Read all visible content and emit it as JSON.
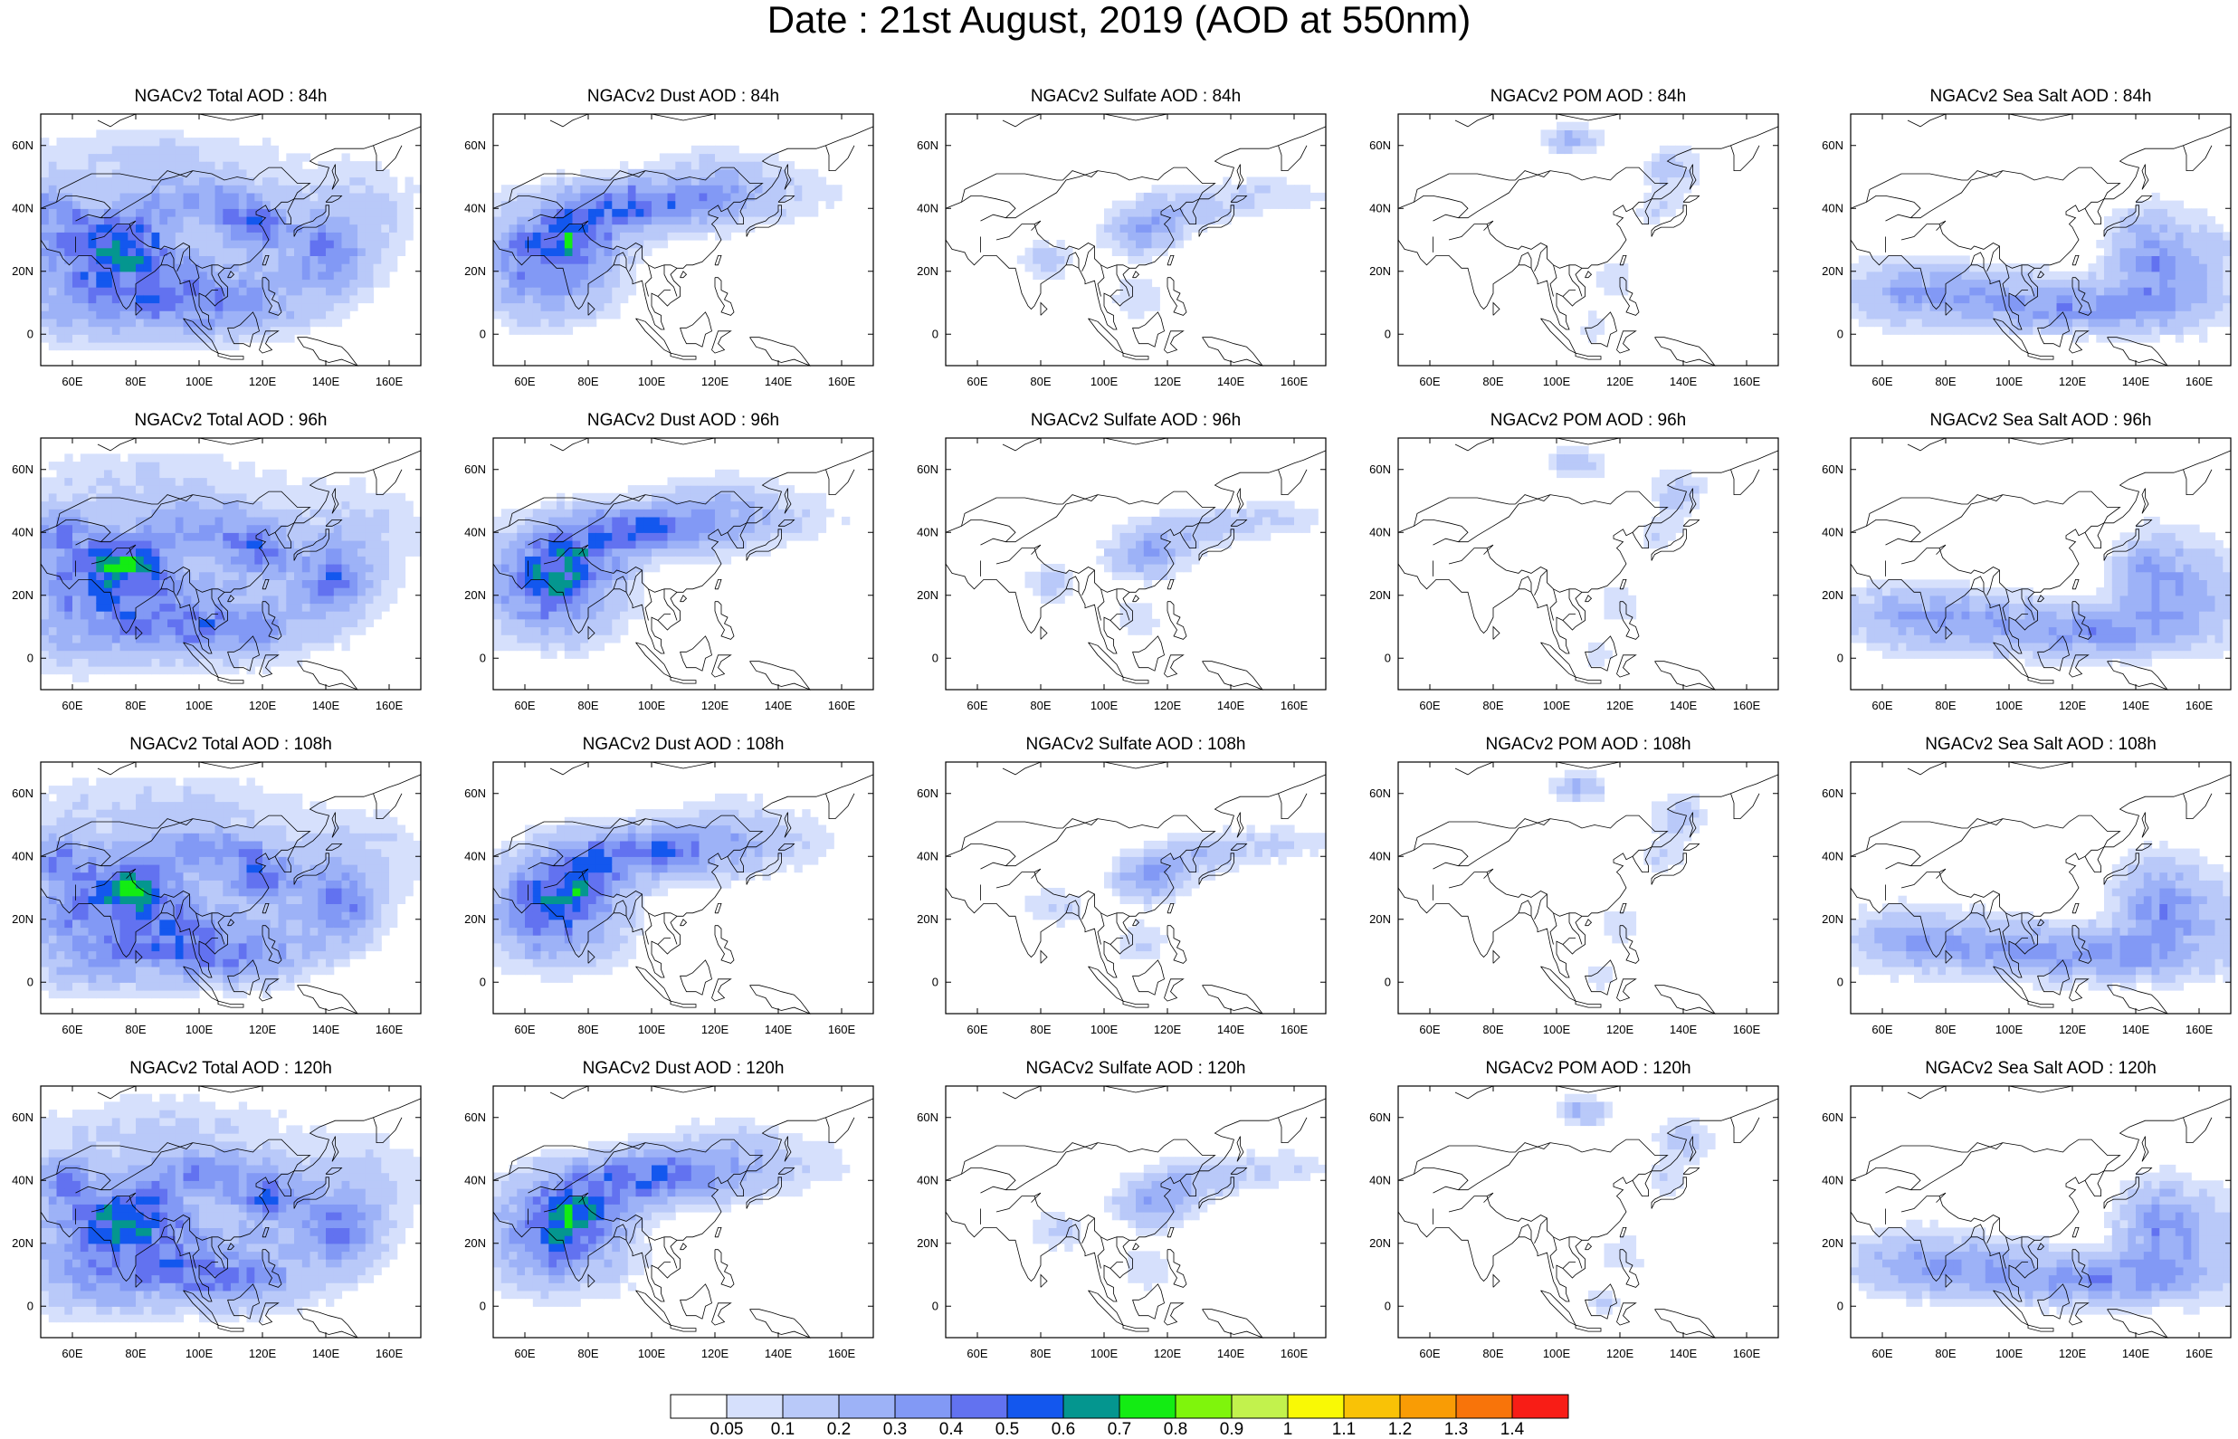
{
  "title": "Date : 21st August, 2019 (AOD at 550nm)",
  "panels": [
    {
      "title": "NGACv2 Total AOD : 84h",
      "field": "total",
      "hour": 84
    },
    {
      "title": "NGACv2 Dust AOD : 84h",
      "field": "dust",
      "hour": 84
    },
    {
      "title": "NGACv2 Sulfate AOD : 84h",
      "field": "sulfate",
      "hour": 84
    },
    {
      "title": "NGACv2 POM AOD : 84h",
      "field": "pom",
      "hour": 84
    },
    {
      "title": "NGACv2 Sea Salt AOD : 84h",
      "field": "seasalt",
      "hour": 84
    },
    {
      "title": "NGACv2 Total AOD : 96h",
      "field": "total",
      "hour": 96
    },
    {
      "title": "NGACv2 Dust AOD : 96h",
      "field": "dust",
      "hour": 96
    },
    {
      "title": "NGACv2 Sulfate AOD : 96h",
      "field": "sulfate",
      "hour": 96
    },
    {
      "title": "NGACv2 POM AOD : 96h",
      "field": "pom",
      "hour": 96
    },
    {
      "title": "NGACv2 Sea Salt AOD : 96h",
      "field": "seasalt",
      "hour": 96
    },
    {
      "title": "NGACv2 Total AOD : 108h",
      "field": "total",
      "hour": 108
    },
    {
      "title": "NGACv2 Dust AOD : 108h",
      "field": "dust",
      "hour": 108
    },
    {
      "title": "NGACv2 Sulfate AOD : 108h",
      "field": "sulfate",
      "hour": 108
    },
    {
      "title": "NGACv2 POM AOD : 108h",
      "field": "pom",
      "hour": 108
    },
    {
      "title": "NGACv2 Sea Salt AOD : 108h",
      "field": "seasalt",
      "hour": 108
    },
    {
      "title": "NGACv2 Total AOD : 120h",
      "field": "total",
      "hour": 120
    },
    {
      "title": "NGACv2 Dust AOD : 120h",
      "field": "dust",
      "hour": 120
    },
    {
      "title": "NGACv2 Sulfate AOD : 120h",
      "field": "sulfate",
      "hour": 120
    },
    {
      "title": "NGACv2 POM AOD : 120h",
      "field": "pom",
      "hour": 120
    },
    {
      "title": "NGACv2 Sea Salt  AOD : 120h",
      "field": "seasalt",
      "hour": 120
    }
  ],
  "map": {
    "lon_range": [
      50,
      170
    ],
    "lat_range": [
      -10,
      70
    ],
    "lon_ticks": [
      60,
      80,
      100,
      120,
      140,
      160
    ],
    "lon_tick_labels": [
      "60E",
      "80E",
      "100E",
      "120E",
      "140E",
      "160E"
    ],
    "lat_ticks": [
      0,
      20,
      40,
      60
    ],
    "lat_tick_labels": [
      "0",
      "20N",
      "40N",
      "60N"
    ],
    "coastline_color": "#000000",
    "frame_color": "#000000"
  },
  "colorbar": {
    "levels": [
      0.05,
      0.1,
      0.2,
      0.3,
      0.4,
      0.5,
      0.6,
      0.7,
      0.8,
      0.9,
      1,
      1.1,
      1.2,
      1.3,
      1.4
    ],
    "labels": [
      "0.05",
      "0.1",
      "0.2",
      "0.3",
      "0.4",
      "0.5",
      "0.6",
      "0.7",
      "0.8",
      "0.9",
      "1",
      "1.1",
      "1.2",
      "1.3",
      "1.4"
    ],
    "colors": [
      "#ffffff",
      "#d6e0fc",
      "#b9c9f9",
      "#9db2f7",
      "#8299f5",
      "#6272f0",
      "#1357ee",
      "#04968f",
      "#13ec13",
      "#7ff50c",
      "#c2f24d",
      "#f9f905",
      "#f9c206",
      "#f99c05",
      "#f8740a",
      "#f81d16"
    ]
  }
}
